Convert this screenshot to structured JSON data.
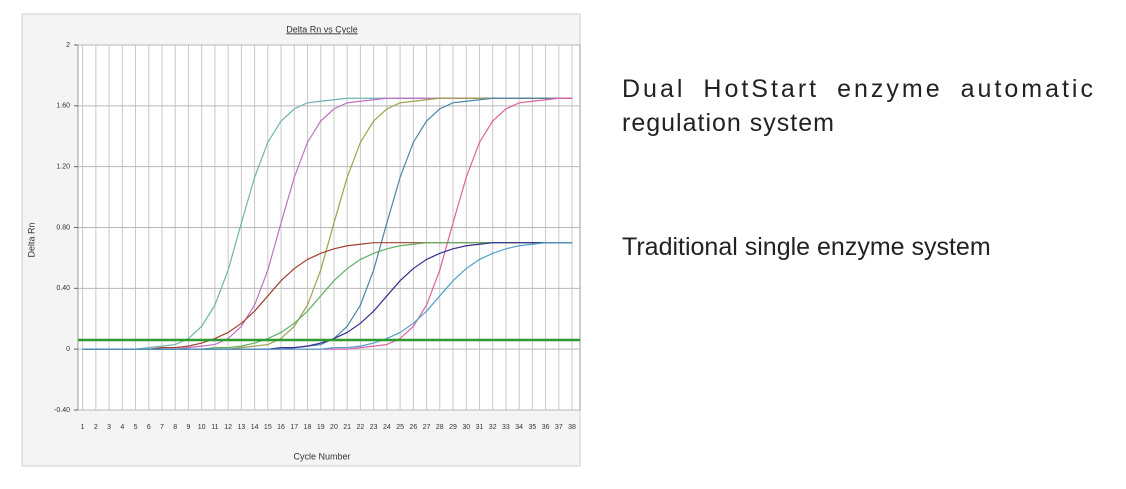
{
  "chart_data": {
    "type": "line",
    "title": "Delta Rn vs Cycle",
    "x_label": "Cycle Number",
    "y_label": "Delta Rn",
    "x": [
      1,
      2,
      3,
      4,
      5,
      6,
      7,
      8,
      9,
      10,
      11,
      12,
      13,
      14,
      15,
      16,
      17,
      18,
      19,
      20,
      21,
      22,
      23,
      24,
      25,
      26,
      27,
      28,
      29,
      30,
      31,
      32,
      33,
      34,
      35,
      36,
      37,
      38
    ],
    "xlim": [
      0.65,
      38.6
    ],
    "xticks": [
      1,
      2,
      3,
      4,
      5,
      6,
      7,
      8,
      9,
      10,
      11,
      12,
      13,
      14,
      15,
      16,
      17,
      18,
      19,
      20,
      21,
      22,
      23,
      24,
      25,
      26,
      27,
      28,
      29,
      30,
      31,
      32,
      33,
      34,
      35,
      36,
      37,
      38
    ],
    "ylim": [
      -0.4,
      2
    ],
    "yticks": [
      {
        "value": -0.4,
        "label": "-0.40"
      },
      0,
      {
        "value": 0.4,
        "label": "0.40"
      },
      {
        "value": 0.8,
        "label": "0.80"
      },
      {
        "value": 1.2,
        "label": "1.20"
      },
      {
        "value": 1.6,
        "label": "1.60"
      },
      2
    ],
    "grid": true,
    "threshold": 0.06,
    "threshold_color": "#2f9a2f",
    "series": [
      {
        "color": "#6fb3b0",
        "values": [
          0,
          0,
          0,
          0,
          0,
          0.01,
          0.02,
          0.03,
          0.07,
          0.15,
          0.29,
          0.52,
          0.83,
          1.13,
          1.36,
          1.5,
          1.58,
          1.62,
          1.63,
          1.64,
          1.65,
          1.65,
          1.65,
          1.65,
          1.65,
          1.65,
          1.65,
          1.65,
          1.65,
          1.65,
          1.65,
          1.65,
          1.65,
          1.65,
          1.65,
          1.65,
          1.65,
          1.65
        ]
      },
      {
        "color": "#c070c0",
        "values": [
          0,
          0,
          0,
          0,
          0,
          0,
          0,
          0,
          0.01,
          0.02,
          0.03,
          0.07,
          0.15,
          0.29,
          0.52,
          0.83,
          1.13,
          1.36,
          1.5,
          1.58,
          1.62,
          1.63,
          1.64,
          1.65,
          1.65,
          1.65,
          1.65,
          1.65,
          1.65,
          1.65,
          1.65,
          1.65,
          1.65,
          1.65,
          1.65,
          1.65,
          1.65,
          1.65
        ]
      },
      {
        "color": "#a0a050",
        "values": [
          0,
          0,
          0,
          0,
          0,
          0,
          0,
          0,
          0,
          0,
          0,
          0,
          0.01,
          0.02,
          0.03,
          0.07,
          0.15,
          0.29,
          0.52,
          0.83,
          1.13,
          1.36,
          1.5,
          1.58,
          1.62,
          1.63,
          1.64,
          1.65,
          1.65,
          1.65,
          1.65,
          1.65,
          1.65,
          1.65,
          1.65,
          1.65,
          1.65,
          1.65
        ]
      },
      {
        "color": "#4a86a6",
        "values": [
          0,
          0,
          0,
          0,
          0,
          0,
          0,
          0,
          0,
          0,
          0,
          0,
          0,
          0,
          0,
          0,
          0.01,
          0.02,
          0.03,
          0.07,
          0.15,
          0.29,
          0.52,
          0.83,
          1.13,
          1.36,
          1.5,
          1.58,
          1.62,
          1.63,
          1.64,
          1.65,
          1.65,
          1.65,
          1.65,
          1.65,
          1.65,
          1.65
        ]
      },
      {
        "color": "#e060a0",
        "values": [
          0,
          0,
          0,
          0,
          0,
          0,
          0,
          0,
          0,
          0,
          0,
          0,
          0,
          0,
          0,
          0,
          0,
          0,
          0,
          0,
          0,
          0.01,
          0.02,
          0.03,
          0.07,
          0.15,
          0.29,
          0.52,
          0.83,
          1.13,
          1.36,
          1.5,
          1.58,
          1.62,
          1.63,
          1.64,
          1.65,
          1.65
        ]
      },
      {
        "color": "#a04030",
        "values": [
          0,
          0,
          0,
          0,
          0,
          0,
          0.01,
          0.01,
          0.02,
          0.04,
          0.07,
          0.11,
          0.17,
          0.25,
          0.35,
          0.45,
          0.53,
          0.59,
          0.63,
          0.66,
          0.68,
          0.69,
          0.7,
          0.7,
          0.7,
          0.7,
          0.7,
          0.7,
          0.7,
          0.7,
          0.7,
          0.7,
          0.7,
          0.7,
          0.7,
          0.7,
          0.7,
          0.7
        ]
      },
      {
        "color": "#60b060",
        "values": [
          0,
          0,
          0,
          0,
          0,
          0,
          0,
          0,
          0,
          0,
          0.01,
          0.01,
          0.02,
          0.04,
          0.07,
          0.11,
          0.17,
          0.25,
          0.35,
          0.45,
          0.53,
          0.59,
          0.63,
          0.66,
          0.68,
          0.69,
          0.7,
          0.7,
          0.7,
          0.7,
          0.7,
          0.7,
          0.7,
          0.7,
          0.7,
          0.7,
          0.7,
          0.7
        ]
      },
      {
        "color": "#303090",
        "values": [
          0,
          0,
          0,
          0,
          0,
          0,
          0,
          0,
          0,
          0,
          0,
          0,
          0,
          0,
          0,
          0.01,
          0.01,
          0.02,
          0.04,
          0.07,
          0.11,
          0.17,
          0.25,
          0.35,
          0.45,
          0.53,
          0.59,
          0.63,
          0.66,
          0.68,
          0.69,
          0.7,
          0.7,
          0.7,
          0.7,
          0.7,
          0.7,
          0.7
        ]
      },
      {
        "color": "#50a0d0",
        "values": [
          0,
          0,
          0,
          0,
          0,
          0,
          0,
          0,
          0,
          0,
          0,
          0,
          0,
          0,
          0,
          0,
          0,
          0,
          0,
          0.01,
          0.01,
          0.02,
          0.04,
          0.07,
          0.11,
          0.17,
          0.25,
          0.35,
          0.45,
          0.53,
          0.59,
          0.63,
          0.66,
          0.68,
          0.69,
          0.7,
          0.7,
          0.7
        ]
      }
    ],
    "annotations": [
      "Dual HotStart enzyme automatic regulation system",
      "Traditional single enzyme system"
    ]
  }
}
